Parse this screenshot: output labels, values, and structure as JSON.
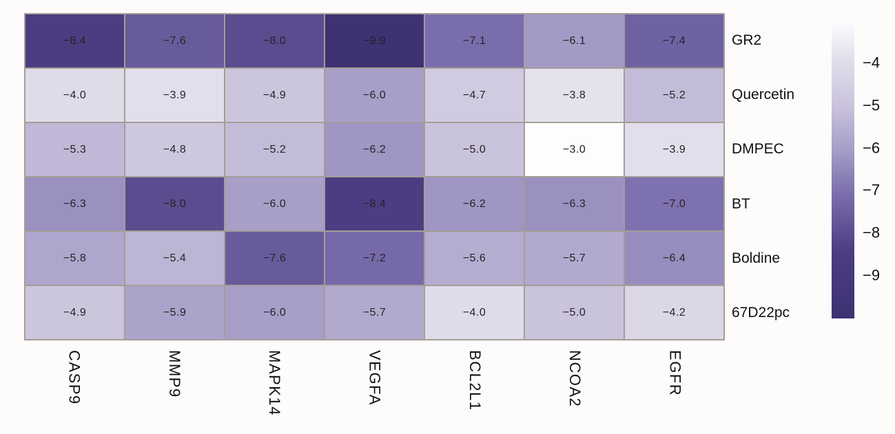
{
  "figure": {
    "background_color": "#fdfcfb",
    "grid_line_color": "#a49d97",
    "cell_text_color": "#232323",
    "axis_label_color": "#111111"
  },
  "chart_data": {
    "type": "heatmap",
    "title": "",
    "xlabel": "",
    "ylabel": "",
    "columns": [
      "CASP9",
      "MMP9",
      "MAPK14",
      "VEGFA",
      "BCL2L1",
      "NCOA2",
      "EGFR"
    ],
    "rows": [
      "GR2",
      "Quercetin",
      "DMPEC",
      "BT",
      "Boldine",
      "67D22pc"
    ],
    "values": [
      [
        -8.4,
        -7.6,
        -8.0,
        -9.9,
        -7.1,
        -6.1,
        -7.4
      ],
      [
        -4.0,
        -3.9,
        -4.9,
        -6.0,
        -4.7,
        -3.8,
        -5.2
      ],
      [
        -5.3,
        -4.8,
        -5.2,
        -6.2,
        -5.0,
        -3.0,
        -3.9
      ],
      [
        -6.3,
        -8.0,
        -6.0,
        -8.4,
        -6.2,
        -6.3,
        -7.0
      ],
      [
        -5.8,
        -5.4,
        -7.6,
        -7.2,
        -5.6,
        -5.7,
        -6.4
      ],
      [
        -4.9,
        -5.9,
        -6.0,
        -5.7,
        -4.0,
        -5.0,
        -4.2
      ]
    ],
    "annotations_decimals": 1,
    "colormap": {
      "name": "purples-dark-low",
      "vmax": -3.0,
      "vmin": -9.9,
      "stops": [
        {
          "t": 0.0,
          "color": "#fdfcfe"
        },
        {
          "t": 0.145,
          "color": "#dfdcea"
        },
        {
          "t": 0.29,
          "color": "#cac3dc"
        },
        {
          "t": 0.435,
          "color": "#a79fc8"
        },
        {
          "t": 0.594,
          "color": "#7a6dac"
        },
        {
          "t": 0.783,
          "color": "#4c3d82"
        },
        {
          "t": 1.0,
          "color": "#3e3273"
        }
      ]
    },
    "colorbar": {
      "position": "right",
      "orientation": "vertical",
      "top_value": -3.0,
      "bottom_value": -10.0,
      "ticks": [
        -4,
        -5,
        -6,
        -7,
        -8,
        -9
      ]
    },
    "legend_position": "right",
    "grid_visible": true
  }
}
